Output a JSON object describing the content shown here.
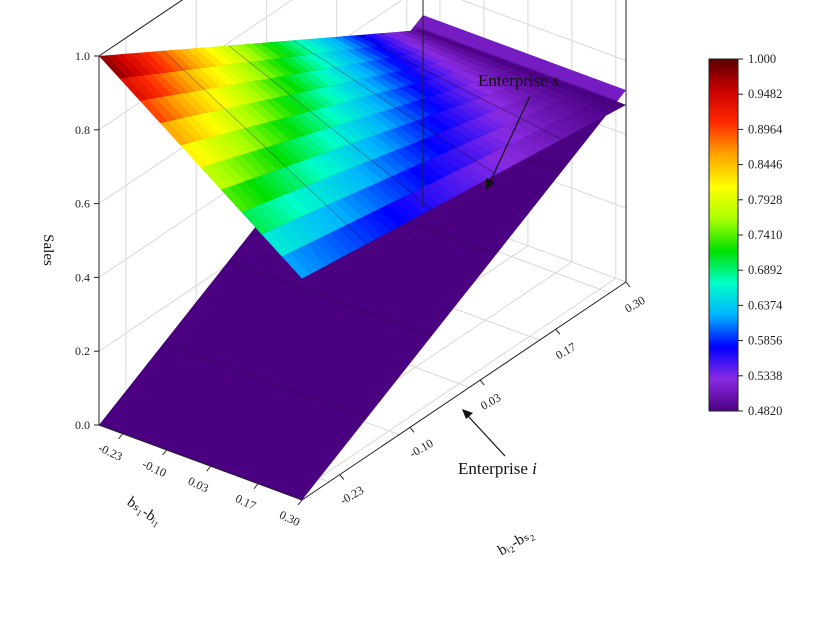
{
  "chart_data": {
    "type": "surface3d",
    "title": "",
    "zlabel": "Sales",
    "xlabel": "bᵢ₂-bₛ₂",
    "ylabel": "bₛ₁-bᵢ₁",
    "x_ticks": [
      "-0.23",
      "-0.10",
      "0.03",
      "0.17",
      "0.30"
    ],
    "y_ticks": [
      "-0.23",
      "-0.10",
      "0.03",
      "0.17",
      "0.30"
    ],
    "z_ticks": [
      "0.0",
      "0.2",
      "0.4",
      "0.6",
      "0.8",
      "1.0"
    ],
    "xlim": [
      -0.3,
      0.3
    ],
    "ylim": [
      -0.3,
      0.3
    ],
    "zlim": [
      0,
      1
    ],
    "grid": true,
    "series": [
      {
        "name": "Enterprise s",
        "corners": {
          "back_left": 1.0,
          "front_left": 0.6,
          "back_right": 0.48,
          "front_right": 0.48
        }
      },
      {
        "name": "Enterprise i",
        "corners": {
          "back_left": 0.0,
          "front_left": 0.0,
          "back_right": 0.52,
          "front_right": 0.52
        }
      }
    ],
    "annotations": [
      {
        "prefix": "Enterprise ",
        "var": "s"
      },
      {
        "prefix": "Enterprise ",
        "var": "i"
      }
    ],
    "colorbar": {
      "min": 0.482,
      "max": 1.0,
      "ticks": [
        "1.000",
        "0.9482",
        "0.8964",
        "0.8446",
        "0.7928",
        "0.7410",
        "0.6892",
        "0.6374",
        "0.5856",
        "0.5338",
        "0.4820"
      ],
      "colors": [
        "#4b0082",
        "#8a2be2",
        "#0000ff",
        "#00b4ff",
        "#00ffc8",
        "#00e000",
        "#a8ff00",
        "#ffff00",
        "#ffa500",
        "#ff2a00",
        "#cc0000",
        "#5a0000"
      ]
    }
  }
}
